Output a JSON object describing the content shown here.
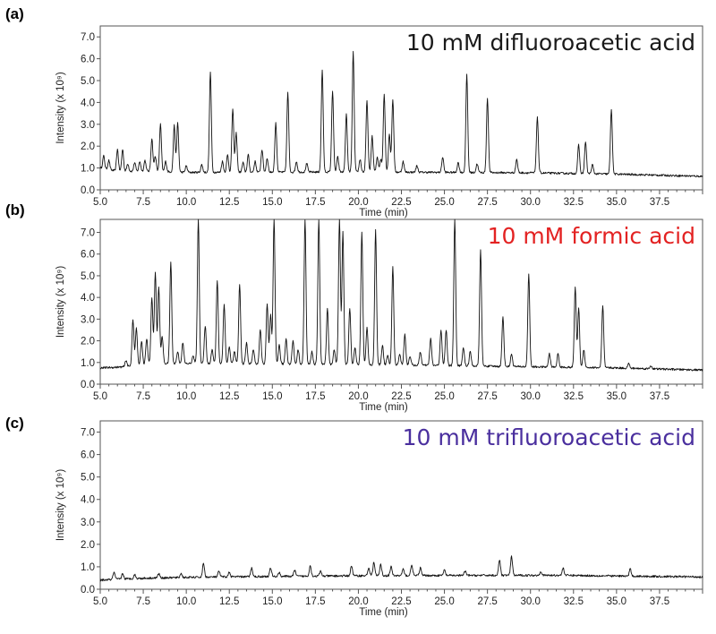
{
  "chart_data": [
    {
      "type": "line",
      "panel_label": "(a)",
      "condition": "10 mM difluoroacetic acid",
      "condition_color": "#1a1a1a",
      "xlabel": "Time (min)",
      "ylabel": "Intensity (x 10⁹)",
      "xlim": [
        5.0,
        40.0
      ],
      "ylim": [
        0.0,
        7.5
      ],
      "xticks": [
        "5.0",
        "7.5",
        "10.0",
        "12.5",
        "15.0",
        "17.5",
        "20.0",
        "22.5",
        "25.0",
        "27.5",
        "30.0",
        "32.5",
        "35.0",
        "37.5"
      ],
      "yticks": [
        "0.0",
        "1.0",
        "2.0",
        "3.0",
        "4.0",
        "5.0",
        "6.0",
        "7.0"
      ],
      "baseline": [
        [
          5.0,
          1.0
        ],
        [
          6.0,
          0.85
        ],
        [
          8.0,
          0.85
        ],
        [
          10.0,
          0.8
        ],
        [
          20.0,
          0.82
        ],
        [
          25.0,
          0.8
        ],
        [
          30.0,
          0.78
        ],
        [
          35.0,
          0.72
        ],
        [
          40.0,
          0.62
        ]
      ],
      "peaks": [
        {
          "x": 5.2,
          "y": 1.55
        },
        {
          "x": 5.5,
          "y": 1.35
        },
        {
          "x": 6.0,
          "y": 1.85
        },
        {
          "x": 6.3,
          "y": 1.85
        },
        {
          "x": 6.6,
          "y": 1.2
        },
        {
          "x": 7.0,
          "y": 1.25
        },
        {
          "x": 7.3,
          "y": 1.3
        },
        {
          "x": 7.6,
          "y": 1.35
        },
        {
          "x": 8.0,
          "y": 2.35
        },
        {
          "x": 8.2,
          "y": 1.55
        },
        {
          "x": 8.5,
          "y": 3.0
        },
        {
          "x": 8.8,
          "y": 1.3
        },
        {
          "x": 9.3,
          "y": 2.95
        },
        {
          "x": 9.5,
          "y": 3.05
        },
        {
          "x": 10.0,
          "y": 1.1
        },
        {
          "x": 10.9,
          "y": 1.15
        },
        {
          "x": 11.4,
          "y": 5.4
        },
        {
          "x": 12.1,
          "y": 1.3
        },
        {
          "x": 12.4,
          "y": 1.6
        },
        {
          "x": 12.7,
          "y": 3.7
        },
        {
          "x": 12.9,
          "y": 2.6
        },
        {
          "x": 13.3,
          "y": 1.25
        },
        {
          "x": 13.6,
          "y": 1.6
        },
        {
          "x": 14.0,
          "y": 1.3
        },
        {
          "x": 14.4,
          "y": 1.85
        },
        {
          "x": 14.7,
          "y": 1.45
        },
        {
          "x": 15.2,
          "y": 3.05
        },
        {
          "x": 15.9,
          "y": 4.45
        },
        {
          "x": 16.4,
          "y": 1.3
        },
        {
          "x": 17.0,
          "y": 1.2
        },
        {
          "x": 17.9,
          "y": 5.5
        },
        {
          "x": 18.5,
          "y": 4.55
        },
        {
          "x": 18.8,
          "y": 1.5
        },
        {
          "x": 19.3,
          "y": 3.45
        },
        {
          "x": 19.7,
          "y": 6.3
        },
        {
          "x": 20.1,
          "y": 1.4
        },
        {
          "x": 20.5,
          "y": 4.1
        },
        {
          "x": 20.8,
          "y": 2.45
        },
        {
          "x": 21.1,
          "y": 1.5
        },
        {
          "x": 21.3,
          "y": 1.4
        },
        {
          "x": 21.5,
          "y": 4.4
        },
        {
          "x": 21.8,
          "y": 2.55
        },
        {
          "x": 22.0,
          "y": 4.15
        },
        {
          "x": 22.6,
          "y": 1.3
        },
        {
          "x": 23.4,
          "y": 1.1
        },
        {
          "x": 24.9,
          "y": 1.5
        },
        {
          "x": 25.8,
          "y": 1.25
        },
        {
          "x": 26.3,
          "y": 5.25
        },
        {
          "x": 26.9,
          "y": 1.2
        },
        {
          "x": 27.5,
          "y": 4.2
        },
        {
          "x": 29.2,
          "y": 1.4
        },
        {
          "x": 30.4,
          "y": 3.35
        },
        {
          "x": 32.8,
          "y": 2.05
        },
        {
          "x": 33.2,
          "y": 2.2
        },
        {
          "x": 33.6,
          "y": 1.15
        },
        {
          "x": 34.7,
          "y": 3.7
        }
      ]
    },
    {
      "type": "line",
      "panel_label": "(b)",
      "condition": "10 mM formic acid",
      "condition_color": "#e32222",
      "xlabel": "Time (min)",
      "ylabel": "Intensity (x 10⁹)",
      "xlim": [
        5.0,
        40.0
      ],
      "ylim": [
        0.0,
        7.6
      ],
      "xticks": [
        "5.0",
        "7.5",
        "10.0",
        "12.5",
        "15.0",
        "17.5",
        "20.0",
        "22.5",
        "25.0",
        "27.5",
        "30.0",
        "32.5",
        "35.0",
        "37.5"
      ],
      "yticks": [
        "0.0",
        "1.0",
        "2.0",
        "3.0",
        "4.0",
        "5.0",
        "6.0",
        "7.0"
      ],
      "baseline": [
        [
          5.0,
          0.75
        ],
        [
          6.5,
          0.8
        ],
        [
          8.0,
          0.95
        ],
        [
          12.0,
          0.95
        ],
        [
          20.0,
          0.9
        ],
        [
          26.0,
          0.85
        ],
        [
          30.0,
          0.8
        ],
        [
          35.0,
          0.75
        ],
        [
          40.0,
          0.65
        ]
      ],
      "peaks": [
        {
          "x": 6.5,
          "y": 1.1
        },
        {
          "x": 6.9,
          "y": 3.0
        },
        {
          "x": 7.1,
          "y": 2.6
        },
        {
          "x": 7.4,
          "y": 2.0
        },
        {
          "x": 7.7,
          "y": 2.1
        },
        {
          "x": 8.0,
          "y": 4.0
        },
        {
          "x": 8.2,
          "y": 5.2
        },
        {
          "x": 8.4,
          "y": 4.5
        },
        {
          "x": 8.6,
          "y": 2.2
        },
        {
          "x": 9.1,
          "y": 5.65
        },
        {
          "x": 9.5,
          "y": 1.5
        },
        {
          "x": 9.8,
          "y": 1.9
        },
        {
          "x": 10.4,
          "y": 1.3
        },
        {
          "x": 10.7,
          "y": 7.6
        },
        {
          "x": 11.1,
          "y": 2.7
        },
        {
          "x": 11.5,
          "y": 1.6
        },
        {
          "x": 11.8,
          "y": 4.8
        },
        {
          "x": 12.2,
          "y": 3.7
        },
        {
          "x": 12.5,
          "y": 1.7
        },
        {
          "x": 12.8,
          "y": 1.5
        },
        {
          "x": 13.1,
          "y": 4.6
        },
        {
          "x": 13.5,
          "y": 1.9
        },
        {
          "x": 13.9,
          "y": 1.6
        },
        {
          "x": 14.3,
          "y": 2.5
        },
        {
          "x": 14.7,
          "y": 3.7
        },
        {
          "x": 14.9,
          "y": 3.2
        },
        {
          "x": 15.1,
          "y": 7.6
        },
        {
          "x": 15.4,
          "y": 1.8
        },
        {
          "x": 15.8,
          "y": 2.1
        },
        {
          "x": 16.2,
          "y": 2.0
        },
        {
          "x": 16.5,
          "y": 1.6
        },
        {
          "x": 16.9,
          "y": 7.6
        },
        {
          "x": 17.3,
          "y": 1.5
        },
        {
          "x": 17.7,
          "y": 7.6
        },
        {
          "x": 18.2,
          "y": 3.5
        },
        {
          "x": 18.6,
          "y": 1.6
        },
        {
          "x": 18.9,
          "y": 7.6
        },
        {
          "x": 19.1,
          "y": 7.0
        },
        {
          "x": 19.5,
          "y": 3.5
        },
        {
          "x": 19.8,
          "y": 1.7
        },
        {
          "x": 20.2,
          "y": 7.0
        },
        {
          "x": 20.5,
          "y": 2.6
        },
        {
          "x": 21.0,
          "y": 7.1
        },
        {
          "x": 21.4,
          "y": 1.8
        },
        {
          "x": 21.7,
          "y": 1.3
        },
        {
          "x": 22.0,
          "y": 5.4
        },
        {
          "x": 22.4,
          "y": 1.4
        },
        {
          "x": 22.7,
          "y": 2.3
        },
        {
          "x": 23.0,
          "y": 1.3
        },
        {
          "x": 23.6,
          "y": 1.5
        },
        {
          "x": 24.2,
          "y": 2.1
        },
        {
          "x": 24.8,
          "y": 2.5
        },
        {
          "x": 25.1,
          "y": 2.5
        },
        {
          "x": 25.6,
          "y": 7.6
        },
        {
          "x": 26.1,
          "y": 1.7
        },
        {
          "x": 26.5,
          "y": 1.5
        },
        {
          "x": 27.1,
          "y": 6.2
        },
        {
          "x": 28.4,
          "y": 3.1
        },
        {
          "x": 28.9,
          "y": 1.4
        },
        {
          "x": 29.9,
          "y": 5.1
        },
        {
          "x": 31.1,
          "y": 1.4
        },
        {
          "x": 31.6,
          "y": 1.4
        },
        {
          "x": 32.6,
          "y": 4.5
        },
        {
          "x": 32.8,
          "y": 3.5
        },
        {
          "x": 33.1,
          "y": 1.6
        },
        {
          "x": 34.2,
          "y": 3.6
        },
        {
          "x": 35.7,
          "y": 0.95
        },
        {
          "x": 37.0,
          "y": 0.85
        }
      ]
    },
    {
      "type": "line",
      "panel_label": "(c)",
      "condition": "10 mM trifluoroacetic acid",
      "condition_color": "#4a2f9e",
      "xlabel": "Time (min)",
      "ylabel": "Intensity (x 10⁹)",
      "xlim": [
        5.0,
        40.0
      ],
      "ylim": [
        0.0,
        7.5
      ],
      "xticks": [
        "5.0",
        "7.5",
        "10.0",
        "12.5",
        "15.0",
        "17.5",
        "20.0",
        "22.5",
        "25.0",
        "27.5",
        "30.0",
        "32.5",
        "35.0",
        "37.5"
      ],
      "yticks": [
        "0.0",
        "1.0",
        "2.0",
        "3.0",
        "4.0",
        "5.0",
        "6.0",
        "7.0"
      ],
      "baseline": [
        [
          5.0,
          0.4
        ],
        [
          6.0,
          0.45
        ],
        [
          8.0,
          0.5
        ],
        [
          12.0,
          0.55
        ],
        [
          20.0,
          0.6
        ],
        [
          28.0,
          0.62
        ],
        [
          32.0,
          0.62
        ],
        [
          36.0,
          0.58
        ],
        [
          40.0,
          0.55
        ]
      ],
      "peaks": [
        {
          "x": 5.8,
          "y": 0.75
        },
        {
          "x": 6.3,
          "y": 0.7
        },
        {
          "x": 7.0,
          "y": 0.65
        },
        {
          "x": 8.4,
          "y": 0.7
        },
        {
          "x": 9.7,
          "y": 0.7
        },
        {
          "x": 11.0,
          "y": 1.15
        },
        {
          "x": 11.9,
          "y": 0.8
        },
        {
          "x": 12.5,
          "y": 0.75
        },
        {
          "x": 13.8,
          "y": 0.95
        },
        {
          "x": 14.9,
          "y": 0.95
        },
        {
          "x": 15.4,
          "y": 0.75
        },
        {
          "x": 16.3,
          "y": 0.85
        },
        {
          "x": 17.2,
          "y": 1.05
        },
        {
          "x": 17.8,
          "y": 0.8
        },
        {
          "x": 19.6,
          "y": 1.05
        },
        {
          "x": 20.6,
          "y": 0.95
        },
        {
          "x": 20.9,
          "y": 1.2
        },
        {
          "x": 21.3,
          "y": 1.1
        },
        {
          "x": 21.9,
          "y": 1.0
        },
        {
          "x": 22.6,
          "y": 0.9
        },
        {
          "x": 23.1,
          "y": 1.1
        },
        {
          "x": 23.6,
          "y": 0.95
        },
        {
          "x": 25.0,
          "y": 0.85
        },
        {
          "x": 26.2,
          "y": 0.8
        },
        {
          "x": 28.2,
          "y": 1.3
        },
        {
          "x": 28.9,
          "y": 1.45
        },
        {
          "x": 30.6,
          "y": 0.8
        },
        {
          "x": 31.9,
          "y": 0.95
        },
        {
          "x": 35.8,
          "y": 0.9
        }
      ]
    }
  ]
}
